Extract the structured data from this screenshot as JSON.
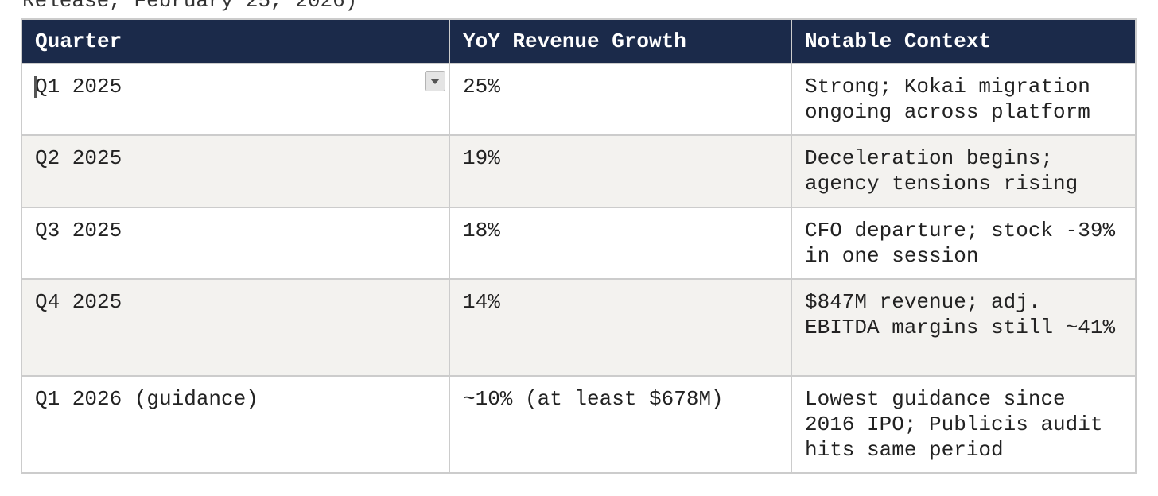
{
  "caption": "Release, February 25, 2026)",
  "table": {
    "headers": [
      "Quarter",
      "YoY Revenue Growth",
      "Notable Context"
    ],
    "rows": [
      {
        "quarter": "Q1 2025",
        "growth": "25%",
        "context": "Strong; Kokai migration ongoing across platform"
      },
      {
        "quarter": "Q2 2025",
        "growth": "19%",
        "context": "Deceleration begins; agency tensions rising"
      },
      {
        "quarter": "Q3 2025",
        "growth": "18%",
        "context": "CFO departure; stock -39% in one session"
      },
      {
        "quarter": "Q4 2025",
        "growth": "14%",
        "context": "$847M revenue; adj. EBITDA margins still ~41%"
      },
      {
        "quarter": "Q1 2026 (guidance)",
        "growth": "~10% (at least $678M)",
        "context": "Lowest guidance since 2016 IPO; Publicis audit hits same period"
      }
    ]
  },
  "icons": {
    "cell_dropdown": "chevron-down-icon"
  }
}
